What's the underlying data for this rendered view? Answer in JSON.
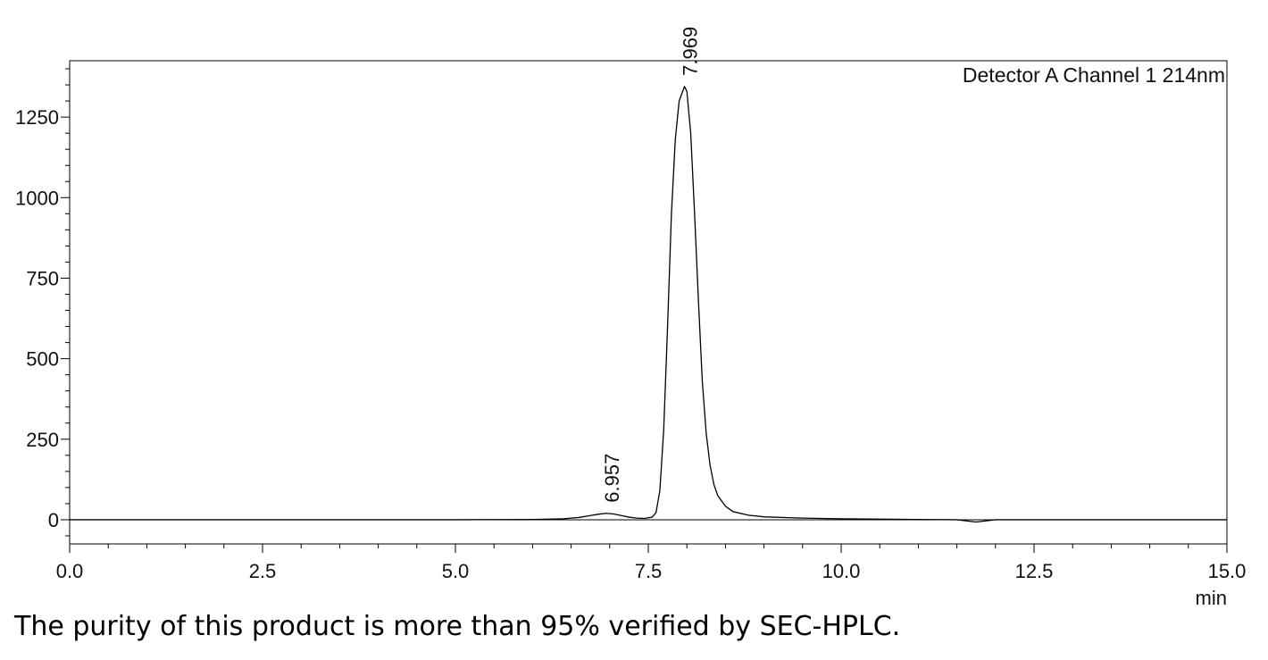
{
  "caption": "The purity of this product is more than 95% verified by SEC-HPLC.",
  "chart_data": {
    "type": "line",
    "title": "",
    "xlabel": "min",
    "ylabel": "",
    "xlim": [
      0,
      15
    ],
    "ylim": [
      -75,
      1425
    ],
    "x_ticks": [
      "0.0",
      "2.5",
      "5.0",
      "7.5",
      "10.0",
      "12.5",
      "15.0"
    ],
    "y_ticks": [
      "0",
      "250",
      "500",
      "750",
      "1000",
      "1250"
    ],
    "legend": "Detector A Channel 1 214nm",
    "legend_placement": "top-right",
    "grid": false,
    "peaks": [
      {
        "rt": 6.957,
        "label": "6.957",
        "height": 20
      },
      {
        "rt": 7.969,
        "label": "7.969",
        "height": 1345
      }
    ],
    "series": [
      {
        "points": [
          [
            0.0,
            0
          ],
          [
            5.0,
            0
          ],
          [
            6.0,
            1
          ],
          [
            6.4,
            3
          ],
          [
            6.6,
            7
          ],
          [
            6.75,
            13
          ],
          [
            6.85,
            17
          ],
          [
            6.957,
            20
          ],
          [
            7.05,
            18
          ],
          [
            7.15,
            13
          ],
          [
            7.25,
            8
          ],
          [
            7.35,
            5
          ],
          [
            7.45,
            4
          ],
          [
            7.55,
            8
          ],
          [
            7.6,
            22
          ],
          [
            7.65,
            90
          ],
          [
            7.7,
            280
          ],
          [
            7.75,
            600
          ],
          [
            7.8,
            950
          ],
          [
            7.85,
            1180
          ],
          [
            7.9,
            1300
          ],
          [
            7.969,
            1345
          ],
          [
            8.0,
            1330
          ],
          [
            8.05,
            1200
          ],
          [
            8.1,
            950
          ],
          [
            8.15,
            680
          ],
          [
            8.2,
            430
          ],
          [
            8.25,
            270
          ],
          [
            8.3,
            170
          ],
          [
            8.35,
            110
          ],
          [
            8.4,
            75
          ],
          [
            8.5,
            42
          ],
          [
            8.6,
            25
          ],
          [
            8.8,
            14
          ],
          [
            9.0,
            9
          ],
          [
            9.5,
            5
          ],
          [
            10.0,
            3
          ],
          [
            11.0,
            1
          ],
          [
            11.5,
            0
          ],
          [
            11.6,
            -3
          ],
          [
            11.75,
            -7
          ],
          [
            11.9,
            -3
          ],
          [
            12.0,
            0
          ],
          [
            13.0,
            0
          ],
          [
            15.0,
            0
          ]
        ]
      }
    ],
    "baseline": 0
  }
}
